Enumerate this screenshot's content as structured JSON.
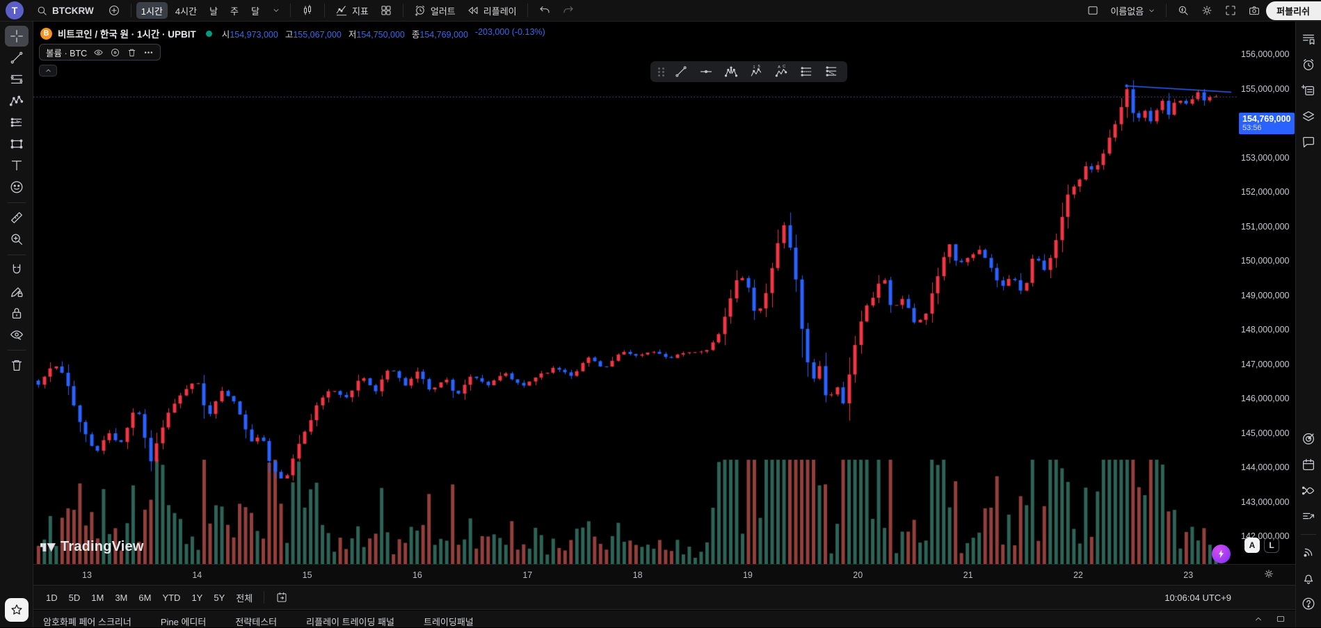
{
  "header": {
    "avatar_letter": "T",
    "symbol": "BTCKRW",
    "timeframes": [
      "1시간",
      "4시간",
      "날",
      "주",
      "달"
    ],
    "selected_timeframe": "1시간",
    "indicators_label": "지표",
    "alert_label": "얼러트",
    "replay_label": "리플레이",
    "layout_name": "이름없음",
    "publish_label": "퍼블리쉬"
  },
  "legend": {
    "bitcoin_glyph": "B",
    "title": "비트코인 / 한국 원 · 1시간 · UPBIT",
    "open_label": "시",
    "open_value": "154,973,000",
    "high_label": "고",
    "high_value": "155,067,000",
    "low_label": "저",
    "low_value": "154,750,000",
    "close_label": "종",
    "close_value": "154,769,000",
    "change_text": "-203,000 (-0.13%)",
    "volume_row_label": "볼륨 · BTC"
  },
  "price_tag": {
    "price": "154,769,000",
    "countdown": "53:56"
  },
  "watermark_text": "TradingView",
  "axis_buttons": {
    "auto": "A",
    "log": "L"
  },
  "bottom": {
    "ranges": [
      "1D",
      "5D",
      "1M",
      "3M",
      "6M",
      "YTD",
      "1Y",
      "5Y",
      "전체"
    ],
    "clock": "10:06:04 UTC+9",
    "tabs": [
      "암호화폐 페어 스크리너",
      "Pine 에디터",
      "전략테스터",
      "리플레이 트레이딩 패널",
      "트레이딩패널"
    ]
  },
  "chart_data": {
    "type": "candlestick",
    "title": "비트코인 / 한국 원 · 1시간 · UPBIT",
    "symbol": "BTCKRW",
    "exchange": "UPBIT",
    "interval": "1시간",
    "price_unit": "KRW",
    "ohlc_current": {
      "open": 154973000,
      "high": 155067000,
      "low": 154750000,
      "close": 154769000,
      "change": -203000,
      "change_pct": -0.13
    },
    "current_price_m": 154.769,
    "y_axis": {
      "ticks_top_m": 156,
      "ticks_bottom_m": 142,
      "tick_step_m": 1,
      "unit": "millions KRW"
    },
    "x_axis": {
      "ticks": [
        "13",
        "14",
        "15",
        "16",
        "17",
        "18",
        "19",
        "20",
        "21",
        "22",
        "23"
      ],
      "start_t": 12.56,
      "end_t": 23.25
    },
    "candle_count": 200,
    "anchors_t_close_m": [
      [
        12.56,
        146.4
      ],
      [
        12.7,
        147.0
      ],
      [
        12.8,
        146.6
      ],
      [
        12.95,
        145.2
      ],
      [
        13.08,
        144.4
      ],
      [
        13.2,
        145.0
      ],
      [
        13.3,
        144.6
      ],
      [
        13.45,
        145.9
      ],
      [
        13.58,
        144.2
      ],
      [
        13.72,
        145.5
      ],
      [
        13.85,
        146.1
      ],
      [
        14.0,
        146.5
      ],
      [
        14.1,
        145.4
      ],
      [
        14.22,
        146.3
      ],
      [
        14.35,
        145.8
      ],
      [
        14.5,
        144.7
      ],
      [
        14.58,
        145.0
      ],
      [
        14.68,
        143.9
      ],
      [
        14.8,
        143.6
      ],
      [
        14.95,
        144.9
      ],
      [
        15.1,
        145.9
      ],
      [
        15.22,
        146.3
      ],
      [
        15.35,
        146.0
      ],
      [
        15.5,
        146.7
      ],
      [
        15.62,
        146.2
      ],
      [
        15.75,
        146.9
      ],
      [
        15.9,
        146.4
      ],
      [
        16.0,
        146.8
      ],
      [
        16.12,
        146.2
      ],
      [
        16.25,
        146.6
      ],
      [
        16.35,
        146.1
      ],
      [
        16.5,
        146.7
      ],
      [
        16.65,
        146.4
      ],
      [
        16.8,
        146.7
      ],
      [
        16.95,
        146.3
      ],
      [
        17.1,
        146.7
      ],
      [
        17.25,
        146.9
      ],
      [
        17.4,
        146.7
      ],
      [
        17.55,
        147.2
      ],
      [
        17.7,
        146.9
      ],
      [
        17.85,
        147.3
      ],
      [
        18.0,
        147.2
      ],
      [
        18.15,
        147.4
      ],
      [
        18.3,
        147.1
      ],
      [
        18.45,
        147.4
      ],
      [
        18.6,
        147.3
      ],
      [
        18.72,
        147.7
      ],
      [
        18.82,
        148.6
      ],
      [
        18.92,
        149.7
      ],
      [
        19.0,
        149.3
      ],
      [
        19.08,
        148.3
      ],
      [
        19.18,
        149.2
      ],
      [
        19.28,
        150.6
      ],
      [
        19.33,
        151.1
      ],
      [
        19.42,
        149.9
      ],
      [
        19.5,
        147.8
      ],
      [
        19.58,
        146.4
      ],
      [
        19.65,
        146.9
      ],
      [
        19.72,
        145.9
      ],
      [
        19.8,
        146.4
      ],
      [
        19.87,
        145.8
      ],
      [
        19.95,
        147.2
      ],
      [
        20.05,
        148.6
      ],
      [
        20.15,
        149.0
      ],
      [
        20.22,
        149.7
      ],
      [
        20.3,
        148.7
      ],
      [
        20.42,
        148.9
      ],
      [
        20.52,
        148.1
      ],
      [
        20.62,
        148.4
      ],
      [
        20.72,
        149.5
      ],
      [
        20.82,
        150.6
      ],
      [
        20.9,
        149.9
      ],
      [
        21.0,
        150.1
      ],
      [
        21.1,
        150.4
      ],
      [
        21.2,
        149.9
      ],
      [
        21.3,
        149.2
      ],
      [
        21.4,
        149.6
      ],
      [
        21.5,
        149.0
      ],
      [
        21.6,
        150.2
      ],
      [
        21.7,
        149.7
      ],
      [
        21.8,
        150.6
      ],
      [
        21.9,
        151.9
      ],
      [
        22.0,
        152.3
      ],
      [
        22.08,
        152.9
      ],
      [
        22.15,
        152.6
      ],
      [
        22.25,
        153.3
      ],
      [
        22.35,
        154.1
      ],
      [
        22.45,
        155.0
      ],
      [
        22.52,
        153.9
      ],
      [
        22.6,
        154.4
      ],
      [
        22.68,
        154.0
      ],
      [
        22.75,
        154.8
      ],
      [
        22.82,
        154.3
      ],
      [
        22.9,
        154.8
      ],
      [
        23.0,
        154.5
      ],
      [
        23.08,
        154.9
      ],
      [
        23.15,
        154.6
      ],
      [
        23.22,
        154.769
      ]
    ],
    "volume_spike_windows_t": [
      [
        14.55,
        14.95,
        1.9
      ],
      [
        18.7,
        19.65,
        2.8
      ],
      [
        19.85,
        20.35,
        1.7
      ],
      [
        21.5,
        21.8,
        1.5
      ],
      [
        22.15,
        22.8,
        2.3
      ]
    ],
    "trendline_drawing": {
      "t1": 22.44,
      "price1_m": 155.08,
      "t2": 23.39,
      "price2_m": 154.9
    },
    "colors": {
      "up": "#f23645",
      "down": "#2962ff",
      "vol_up": "#2e6458",
      "vol_down": "#93403c",
      "price_line": "#2962ff",
      "accent_blue": "#2962ff",
      "market_open_dot": "#089981"
    },
    "legend_grid": false,
    "legend_position": "none"
  }
}
